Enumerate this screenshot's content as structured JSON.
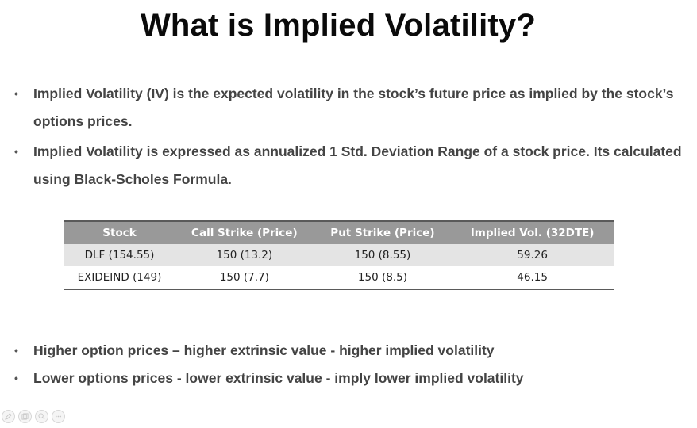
{
  "slide": {
    "title": "What is Implied Volatility?",
    "bullets_top": [
      "Implied Volatility (IV) is the expected volatility in the stock’s future price as implied by the stock’s options prices.",
      "Implied Volatility is expressed as annualized 1 Std. Deviation Range of a stock price. Its calculated using Black-Scholes Formula."
    ],
    "table": {
      "headers": [
        "Stock",
        "Call Strike (Price)",
        "Put Strike (Price)",
        "Implied Vol. (32DTE)"
      ],
      "rows": [
        [
          "DLF (154.55)",
          "150 (13.2)",
          "150 (8.55)",
          "59.26"
        ],
        [
          "EXIDEIND (149)",
          "150 (7.7)",
          "150 (8.5)",
          "46.15"
        ]
      ]
    },
    "bullets_bottom": [
      "Higher option prices – higher extrinsic value  - higher  implied volatility",
      "Lower options prices -  lower extrinsic value - imply lower implied volatility"
    ],
    "bullet_char": "•"
  },
  "toolbar": {
    "icons": [
      "pen-icon",
      "pages-icon",
      "zoom-icon",
      "more-icon"
    ]
  },
  "colors": {
    "header_bg": "#999999",
    "row_shade": "#e4e4e4",
    "rule": "#5a5a5a"
  }
}
